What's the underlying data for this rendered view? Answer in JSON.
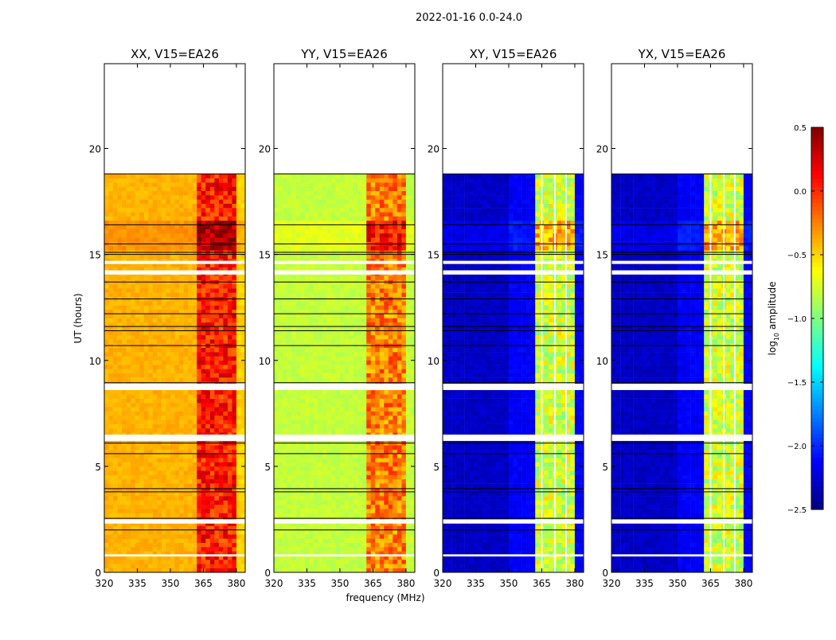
{
  "chart_data": {
    "type": "heatmap",
    "suptitle": "2022-01-16 0.0-24.0",
    "xlabel": "frequency (MHz)",
    "ylabel": "UT (hours)",
    "xlim": [
      320,
      384
    ],
    "ylim": [
      0,
      24
    ],
    "xticks": [
      "320",
      "335",
      "350",
      "365",
      "380"
    ],
    "xtick_values": [
      320,
      335,
      350,
      365,
      380
    ],
    "yticks": [
      "0",
      "5",
      "10",
      "15",
      "20"
    ],
    "ytick_values": [
      0,
      5,
      10,
      15,
      20
    ],
    "data_time_range": [
      0,
      18.8
    ],
    "flagged_gaps_hours": [
      [
        0.75,
        0.85
      ],
      [
        2.3,
        2.5
      ],
      [
        6.2,
        6.5
      ],
      [
        8.6,
        8.9
      ],
      [
        14.05,
        14.25
      ],
      [
        14.55,
        14.7
      ]
    ],
    "black_lines_hours": [
      2.0,
      2.55,
      3.8,
      3.95,
      5.6,
      6.1,
      8.95,
      10.7,
      11.4,
      11.6,
      12.2,
      12.9,
      13.7,
      15.0,
      15.1,
      15.5,
      16.4,
      18.8
    ],
    "bright_interval_hours": [
      15.1,
      16.4
    ],
    "panels": [
      {
        "title": "XX, V15=EA26",
        "background_level": -0.4,
        "band_range_mhz": [
          362,
          380
        ],
        "band_level": 0.05,
        "edge_level": -0.5,
        "band_gaps_mhz": []
      },
      {
        "title": "YY, V15=EA26",
        "background_level": -0.8,
        "band_range_mhz": [
          362,
          380
        ],
        "band_level": -0.25,
        "edge_level": -0.8,
        "band_gaps_mhz": []
      },
      {
        "title": "XY, V15=EA26",
        "background_level": -2.3,
        "band_range_mhz": [
          361,
          380
        ],
        "band_level": -0.75,
        "edge_level": -2.3,
        "band_gaps_mhz": [
          365,
          371,
          376
        ]
      },
      {
        "title": "YX, V15=EA26",
        "background_level": -2.3,
        "band_range_mhz": [
          361,
          380
        ],
        "band_level": -0.75,
        "edge_level": -2.3,
        "band_gaps_mhz": [
          365,
          371,
          376
        ]
      }
    ],
    "colorbar": {
      "label": "log10 amplitude",
      "label_main": "log",
      "label_sub": "10",
      "label_rest": " amplitude",
      "colormap": "jet",
      "range": [
        -2.5,
        0.5
      ],
      "ticks": [
        "0.5",
        "0.0",
        "−0.5",
        "−1.0",
        "−1.5",
        "−2.0",
        "−2.5"
      ],
      "tick_values": [
        0.5,
        0.0,
        -0.5,
        -1.0,
        -1.5,
        -2.0,
        -2.5
      ]
    }
  }
}
